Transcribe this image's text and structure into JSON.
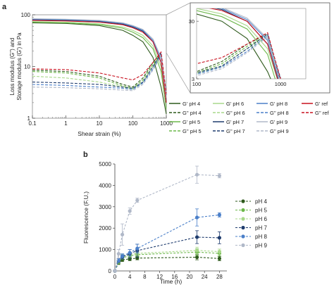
{
  "panel_a": {
    "label": "a"
  },
  "panel_b": {
    "label": "b"
  },
  "chart_data": [
    {
      "id": "a-main",
      "type": "line",
      "xlabel": "Shear strain (%)",
      "ylabel_line1": "Loss modulus (G'') and",
      "ylabel_line2": "Storage modulus (G') in Pa",
      "xscale": "log",
      "yscale": "log",
      "xlim": [
        0.1,
        1000
      ],
      "ylim": [
        1,
        100
      ],
      "xticks": [
        "0.1",
        "1",
        "10",
        "100",
        "1000"
      ],
      "yticks": [
        "1",
        "10",
        "100"
      ],
      "series": [
        {
          "name": "G'  pH 4",
          "color": "#2e5a1c",
          "dash": "",
          "x": [
            0.1,
            1,
            10,
            50,
            100,
            200,
            400,
            700,
            1000
          ],
          "y": [
            70,
            68,
            62,
            50,
            40,
            30,
            15,
            4,
            1.2
          ]
        },
        {
          "name": "G'' pH 4",
          "color": "#2e5a1c",
          "dash": "4,2",
          "x": [
            0.1,
            1,
            10,
            50,
            100,
            200,
            400,
            700,
            1000
          ],
          "y": [
            8.5,
            8,
            6.5,
            4.5,
            4,
            6,
            12,
            18,
            2
          ]
        },
        {
          "name": "G'  pH 5",
          "color": "#6cb84a",
          "dash": "",
          "x": [
            0.1,
            1,
            10,
            50,
            100,
            200,
            400,
            700,
            1000
          ],
          "y": [
            72,
            70,
            65,
            55,
            46,
            36,
            22,
            8,
            1.5
          ]
        },
        {
          "name": "G'' pH 5",
          "color": "#6cb84a",
          "dash": "4,2",
          "x": [
            0.1,
            1,
            10,
            50,
            100,
            200,
            400,
            700,
            1000
          ],
          "y": [
            8,
            7.5,
            6,
            4.2,
            3.8,
            5.5,
            11,
            17,
            2.2
          ]
        },
        {
          "name": "G'  pH 6",
          "color": "#a8d88a",
          "dash": "",
          "x": [
            0.1,
            1,
            10,
            50,
            100,
            200,
            400,
            700,
            1000
          ],
          "y": [
            74,
            72,
            67,
            58,
            50,
            40,
            25,
            10,
            2
          ]
        },
        {
          "name": "G'' pH 6",
          "color": "#a8d88a",
          "dash": "4,2",
          "x": [
            0.1,
            1,
            10,
            50,
            100,
            200,
            400,
            700,
            1000
          ],
          "y": [
            6.5,
            6,
            5,
            4,
            3.6,
            5,
            10,
            16,
            2.5
          ]
        },
        {
          "name": "G'  pH 7",
          "color": "#1f3c6e",
          "dash": "",
          "x": [
            0.1,
            1,
            10,
            50,
            100,
            200,
            400,
            700,
            1000
          ],
          "y": [
            80,
            78,
            74,
            66,
            58,
            48,
            30,
            12,
            2
          ]
        },
        {
          "name": "G'' pH 7",
          "color": "#1f3c6e",
          "dash": "4,2",
          "x": [
            0.1,
            1,
            10,
            50,
            100,
            200,
            400,
            700,
            1000
          ],
          "y": [
            5,
            4.8,
            4.5,
            4,
            3.8,
            5,
            10,
            18,
            2.8
          ]
        },
        {
          "name": "G'  pH 8",
          "color": "#4a7fc9",
          "dash": "",
          "x": [
            0.1,
            1,
            10,
            50,
            100,
            200,
            400,
            700,
            1000
          ],
          "y": [
            82,
            80,
            76,
            68,
            60,
            50,
            32,
            14,
            2.2
          ]
        },
        {
          "name": "G'' pH 8",
          "color": "#4a7fc9",
          "dash": "4,2",
          "x": [
            0.1,
            1,
            10,
            50,
            100,
            200,
            400,
            700,
            1000
          ],
          "y": [
            4.5,
            4.3,
            4,
            3.8,
            3.6,
            4.8,
            9,
            17,
            3
          ]
        },
        {
          "name": "G'  pH 9",
          "color": "#b0b8c8",
          "dash": "",
          "x": [
            0.1,
            1,
            10,
            50,
            100,
            200,
            400,
            700,
            1000
          ],
          "y": [
            84,
            82,
            78,
            70,
            62,
            52,
            34,
            15,
            2.5
          ]
        },
        {
          "name": "G'' pH 9",
          "color": "#b0b8c8",
          "dash": "4,2",
          "x": [
            0.1,
            1,
            10,
            50,
            100,
            200,
            400,
            700,
            1000
          ],
          "y": [
            4,
            3.9,
            3.7,
            3.5,
            3.4,
            4.5,
            8.5,
            16,
            3.2
          ]
        },
        {
          "name": "G'  ref",
          "color": "#c8101e",
          "dash": "",
          "x": [
            0.1,
            1,
            10,
            50,
            100,
            200,
            400,
            700,
            1000
          ],
          "y": [
            78,
            76,
            72,
            64,
            56,
            46,
            30,
            12,
            2
          ]
        },
        {
          "name": "G'' ref",
          "color": "#c8101e",
          "dash": "4,2",
          "x": [
            0.1,
            1,
            10,
            50,
            100,
            200,
            400,
            700,
            1000
          ],
          "y": [
            9,
            8.7,
            7.5,
            6,
            5.5,
            7,
            12,
            19,
            3
          ]
        }
      ]
    },
    {
      "id": "a-inset",
      "type": "line",
      "xscale": "log",
      "yscale": "log",
      "xlim": [
        100,
        2000
      ],
      "ylim": [
        3,
        50
      ],
      "xticks": [
        "100",
        "1000"
      ],
      "yticks": [
        "3",
        "30"
      ]
    },
    {
      "id": "b",
      "type": "line",
      "xlabel": "Time (h)",
      "ylabel": "Fluorescence (F.U.)",
      "xlim": [
        0,
        30
      ],
      "ylim": [
        0,
        5000
      ],
      "xticks": [
        "0",
        "4",
        "8",
        "12",
        "16",
        "20",
        "24",
        "28"
      ],
      "yticks": [
        "0",
        "1000",
        "2000",
        "3000",
        "4000",
        "5000"
      ],
      "series": [
        {
          "name": "pH 4",
          "color": "#2e5a1c",
          "x": [
            0,
            1,
            2,
            4,
            6,
            22,
            28
          ],
          "y": [
            0,
            380,
            520,
            560,
            600,
            640,
            580
          ],
          "err": [
            0,
            80,
            80,
            80,
            80,
            120,
            100
          ]
        },
        {
          "name": "pH 5",
          "color": "#6cb84a",
          "x": [
            0,
            1,
            2,
            4,
            6,
            22,
            28
          ],
          "y": [
            0,
            420,
            620,
            700,
            760,
            880,
            820
          ],
          "err": [
            0,
            80,
            90,
            90,
            100,
            150,
            120
          ]
        },
        {
          "name": "pH 6",
          "color": "#a8d88a",
          "x": [
            0,
            1,
            2,
            4,
            6,
            22,
            28
          ],
          "y": [
            0,
            450,
            680,
            760,
            820,
            960,
            900
          ],
          "err": [
            0,
            80,
            90,
            90,
            100,
            150,
            120
          ]
        },
        {
          "name": "pH 7",
          "color": "#1f3c6e",
          "x": [
            0,
            1,
            2,
            4,
            6,
            22,
            28
          ],
          "y": [
            0,
            480,
            650,
            800,
            950,
            1580,
            1550
          ],
          "err": [
            0,
            90,
            100,
            200,
            300,
            300,
            280
          ]
        },
        {
          "name": "pH 8",
          "color": "#4a7fc9",
          "x": [
            0,
            1,
            2,
            4,
            6,
            22,
            28
          ],
          "y": [
            0,
            500,
            700,
            850,
            1050,
            2500,
            2620
          ],
          "err": [
            0,
            90,
            100,
            150,
            200,
            400,
            100
          ]
        },
        {
          "name": "pH 9",
          "color": "#b0b8c8",
          "x": [
            0,
            1,
            2,
            4,
            6,
            22,
            28
          ],
          "y": [
            0,
            800,
            1700,
            2800,
            3300,
            4500,
            4450
          ],
          "err": [
            0,
            200,
            500,
            150,
            100,
            400,
            100
          ]
        }
      ]
    }
  ]
}
